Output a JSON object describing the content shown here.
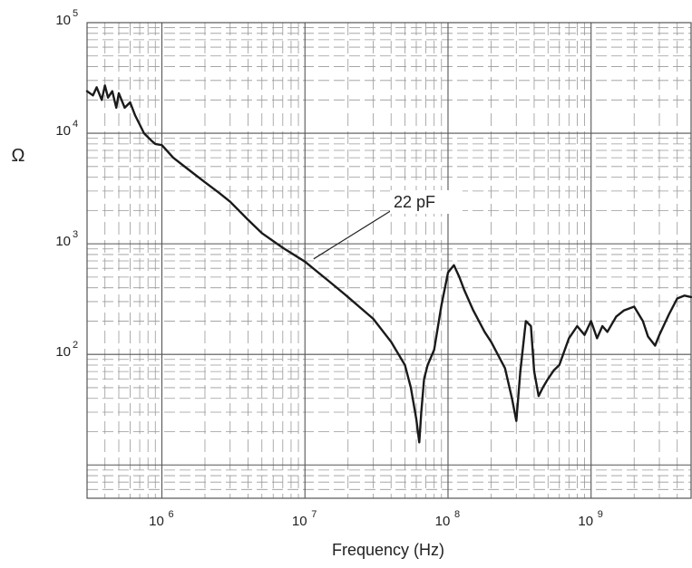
{
  "chart_data": {
    "type": "line",
    "title": "",
    "xlabel": "Frequency (Hz)",
    "ylabel": "Ω",
    "x_scale": "log",
    "y_scale": "log",
    "xlim": [
      300000,
      5000000000
    ],
    "ylim": [
      5,
      100000
    ],
    "grid": true,
    "x_ticks": [
      {
        "base": "10",
        "exp": "6",
        "value": 1000000
      },
      {
        "base": "10",
        "exp": "7",
        "value": 10000000
      },
      {
        "base": "10",
        "exp": "8",
        "value": 100000000
      },
      {
        "base": "10",
        "exp": "9",
        "value": 1000000000
      }
    ],
    "y_ticks": [
      {
        "base": "10",
        "exp": "2",
        "value": 100
      },
      {
        "base": "10",
        "exp": "3",
        "value": 1000
      },
      {
        "base": "10",
        "exp": "4",
        "value": 10000
      },
      {
        "base": "10",
        "exp": "5",
        "value": 100000
      }
    ],
    "annotation": {
      "text": "22 pF",
      "point_x": 11500000,
      "point_y": 730
    },
    "series": [
      {
        "name": "",
        "color": "#1a1a1a",
        "x": [
          300000,
          330000,
          350000,
          380000,
          400000,
          420000,
          450000,
          480000,
          500000,
          550000,
          600000,
          650000,
          700000,
          750000,
          800000,
          850000,
          900000,
          1000000,
          1200000,
          1500000,
          2000000,
          2500000,
          3000000,
          4000000,
          5000000,
          7000000,
          10000000,
          15000000,
          20000000,
          30000000,
          40000000,
          50000000,
          55000000,
          60000000,
          63000000,
          65000000,
          68000000,
          72000000,
          80000000,
          90000000,
          100000000,
          110000000,
          120000000,
          130000000,
          150000000,
          180000000,
          200000000,
          250000000,
          280000000,
          300000000,
          320000000,
          350000000,
          380000000,
          400000000,
          430000000,
          460000000,
          500000000,
          550000000,
          600000000,
          700000000,
          800000000,
          900000000,
          1000000000,
          1100000000,
          1200000000,
          1300000000,
          1500000000,
          1700000000,
          2000000000,
          2300000000,
          2500000000,
          2800000000,
          3000000000,
          3500000000,
          4000000000,
          4500000000,
          5000000000
        ],
        "y": [
          24000,
          22000,
          26000,
          20000,
          27000,
          21000,
          24000,
          17000,
          23000,
          17000,
          19000,
          14500,
          12000,
          10000,
          9200,
          8500,
          8000,
          7800,
          6000,
          4800,
          3600,
          2900,
          2400,
          1650,
          1250,
          920,
          690,
          450,
          330,
          210,
          130,
          80,
          50,
          26,
          16,
          30,
          60,
          80,
          110,
          280,
          550,
          640,
          500,
          380,
          250,
          160,
          130,
          75,
          40,
          25,
          70,
          200,
          180,
          70,
          42,
          50,
          60,
          72,
          80,
          140,
          180,
          150,
          200,
          140,
          180,
          160,
          220,
          250,
          270,
          200,
          145,
          120,
          150,
          230,
          320,
          340,
          330
        ]
      }
    ]
  }
}
